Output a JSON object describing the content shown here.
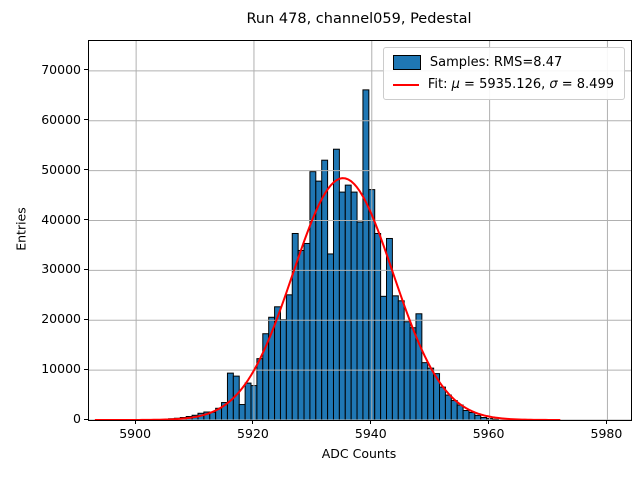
{
  "chart_data": {
    "type": "bar",
    "subtype": "histogram",
    "title": "Run 478, channel059, Pedestal",
    "xlabel": "ADC Counts",
    "ylabel": "Entries",
    "xlim": [
      5892,
      5984
    ],
    "ylim": [
      0,
      76000
    ],
    "x_ticks": [
      5900,
      5920,
      5940,
      5960,
      5980
    ],
    "y_ticks": [
      0,
      10000,
      20000,
      30000,
      40000,
      50000,
      60000,
      70000
    ],
    "grid": true,
    "legend_position": "upper right",
    "bin_width": 1,
    "bin_centers": [
      5906,
      5907,
      5908,
      5909,
      5910,
      5911,
      5912,
      5913,
      5914,
      5915,
      5916,
      5917,
      5918,
      5919,
      5920,
      5921,
      5922,
      5923,
      5924,
      5925,
      5926,
      5927,
      5928,
      5929,
      5930,
      5931,
      5932,
      5933,
      5934,
      5935,
      5936,
      5937,
      5938,
      5939,
      5940,
      5941,
      5942,
      5943,
      5944,
      5945,
      5946,
      5947,
      5948,
      5949,
      5950,
      5951,
      5952,
      5953,
      5954,
      5955,
      5956,
      5957,
      5958,
      5959,
      5960,
      5961
    ],
    "counts": [
      250,
      350,
      500,
      700,
      950,
      1350,
      1600,
      1550,
      2350,
      3500,
      9400,
      8800,
      3100,
      7400,
      6900,
      12300,
      17300,
      20600,
      22700,
      20100,
      25100,
      37400,
      34000,
      35400,
      49800,
      47900,
      52100,
      33300,
      54300,
      45700,
      47100,
      45700,
      39700,
      66200,
      46200,
      37400,
      24800,
      36400,
      24900,
      23900,
      19700,
      18500,
      21300,
      11500,
      10400,
      9300,
      6600,
      5000,
      3900,
      3000,
      1900,
      1500,
      930,
      500,
      280,
      150
    ],
    "fit": {
      "shape": "gaussian",
      "mu": 5935.126,
      "sigma": 8.499,
      "amplitude": 48500,
      "draw_range": [
        5893,
        5972
      ]
    },
    "legend": {
      "samples_label": "Samples: RMS=8.47",
      "rms": 8.47,
      "fit_parts": [
        "Fit: ",
        "μ",
        " = 5935.126, ",
        "σ",
        " = 8.499"
      ]
    },
    "colors": {
      "bar_fill": "#1f77b4",
      "bar_edge": "#000000",
      "fit_line": "#ff0000",
      "grid": "#b0b0b0",
      "spine": "#000000"
    }
  }
}
